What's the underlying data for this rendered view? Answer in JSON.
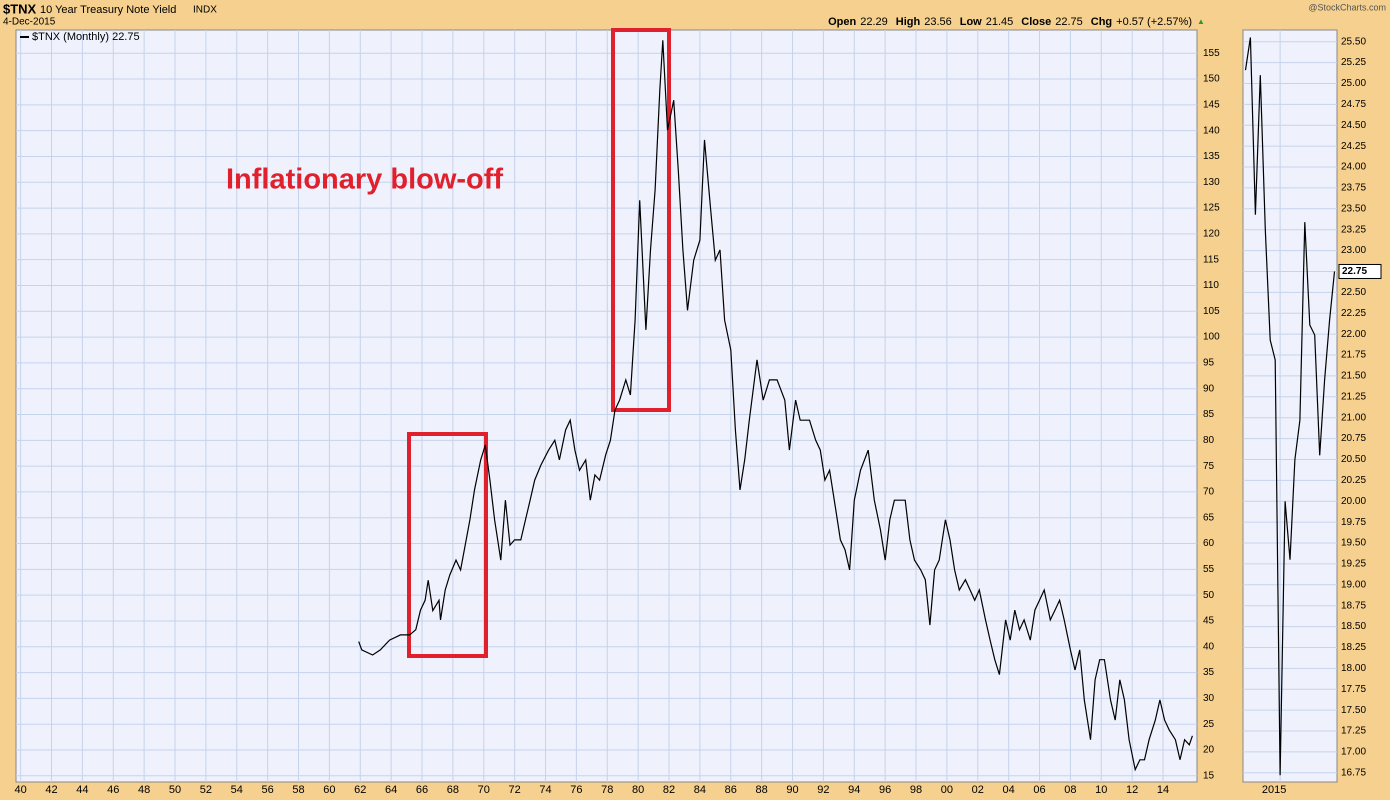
{
  "header": {
    "symbol": "$TNX",
    "name": "10 Year Treasury Note Yield",
    "exchange": "INDX",
    "date": "4-Dec-2015",
    "brand": "@StockCharts.com",
    "quote": [
      {
        "label": "Open",
        "value": "22.29"
      },
      {
        "label": "High",
        "value": "23.56"
      },
      {
        "label": "Low",
        "value": "21.45"
      },
      {
        "label": "Close",
        "value": "22.75"
      },
      {
        "label": "Chg",
        "value": "+0.57 (+2.57%)"
      }
    ]
  },
  "chart_data": [
    {
      "type": "line",
      "annotation": "Inflationary blow-off",
      "x": [
        1961.9,
        1962.1,
        1962.8,
        1963.3,
        1963.9,
        1964.6,
        1965.2,
        1965.6,
        1965.9,
        1966.2,
        1966.4,
        1966.7,
        1967.1,
        1967.2,
        1967.5,
        1967.8,
        1968.2,
        1968.5,
        1968.8,
        1969.1,
        1969.4,
        1969.8,
        1970.1,
        1970.4,
        1970.7,
        1971.1,
        1971.4,
        1971.7,
        1972.0,
        1972.4,
        1972.7,
        1973.0,
        1973.3,
        1973.7,
        1974.2,
        1974.6,
        1974.9,
        1975.3,
        1975.6,
        1975.9,
        1976.2,
        1976.6,
        1976.9,
        1977.2,
        1977.5,
        1977.9,
        1978.2,
        1978.5,
        1978.8,
        1979.2,
        1979.5,
        1979.8,
        1980.1,
        1980.5,
        1980.8,
        1981.1,
        1981.4,
        1981.6,
        1981.9,
        1982.3,
        1982.6,
        1982.9,
        1983.2,
        1983.6,
        1984.0,
        1984.3,
        1984.7,
        1985.0,
        1985.3,
        1985.6,
        1986.0,
        1986.3,
        1986.6,
        1986.9,
        1987.2,
        1987.7,
        1988.1,
        1988.5,
        1989.0,
        1989.5,
        1989.8,
        1990.2,
        1990.5,
        1991.1,
        1991.5,
        1991.8,
        1992.1,
        1992.4,
        1992.8,
        1993.1,
        1993.4,
        1993.7,
        1994.0,
        1994.4,
        1994.9,
        1995.3,
        1995.7,
        1996.0,
        1996.3,
        1996.6,
        1997.0,
        1997.3,
        1997.6,
        1997.9,
        1998.3,
        1998.6,
        1998.9,
        1999.2,
        1999.5,
        1999.9,
        2000.2,
        2000.5,
        2000.8,
        2001.2,
        2001.5,
        2001.8,
        2002.1,
        2002.5,
        2002.8,
        2003.1,
        2003.4,
        2003.8,
        2004.1,
        2004.4,
        2004.7,
        2005.0,
        2005.4,
        2005.7,
        2006.0,
        2006.3,
        2006.7,
        2007.0,
        2007.3,
        2007.6,
        2008.0,
        2008.3,
        2008.6,
        2008.9,
        2009.3,
        2009.6,
        2009.9,
        2010.2,
        2010.6,
        2010.9,
        2011.2,
        2011.5,
        2011.8,
        2012.2,
        2012.5,
        2012.8,
        2013.1,
        2013.5,
        2013.8,
        2014.1,
        2014.4,
        2014.8,
        2015.1,
        2015.4,
        2015.7,
        2015.9
      ],
      "series": [
        {
          "name": "$TNX (Monthly) 22.75",
          "color": "#000000",
          "values": [
            41.0,
            39.4,
            38.4,
            39.4,
            41.3,
            42.3,
            42.3,
            43.3,
            47.1,
            49.0,
            52.9,
            47.0,
            49.0,
            45.2,
            51.0,
            53.9,
            56.8,
            54.9,
            59.7,
            64.6,
            70.4,
            76.2,
            79.1,
            72.3,
            64.6,
            56.8,
            68.4,
            59.7,
            60.7,
            60.7,
            64.6,
            68.4,
            72.3,
            75.2,
            78.1,
            80.0,
            76.2,
            82.0,
            83.9,
            78.1,
            74.2,
            76.2,
            68.4,
            73.3,
            72.3,
            77.2,
            80.0,
            85.9,
            87.8,
            91.7,
            88.8,
            103.3,
            126.5,
            101.4,
            116.9,
            128.5,
            147.8,
            157.5,
            140.1,
            145.9,
            132.3,
            116.9,
            105.2,
            114.9,
            118.8,
            138.2,
            124.6,
            114.9,
            116.9,
            103.3,
            97.5,
            82.0,
            70.4,
            76.2,
            83.9,
            95.6,
            87.8,
            91.7,
            91.7,
            87.8,
            78.1,
            87.8,
            83.9,
            83.9,
            80.0,
            78.1,
            72.3,
            74.2,
            66.5,
            60.7,
            58.8,
            54.9,
            68.4,
            74.2,
            78.1,
            68.4,
            62.6,
            56.8,
            64.6,
            68.4,
            68.4,
            68.4,
            60.7,
            56.8,
            54.9,
            53.0,
            44.2,
            54.9,
            56.8,
            64.6,
            60.7,
            54.9,
            51.0,
            53.0,
            51.0,
            49.0,
            51.0,
            45.2,
            41.3,
            37.5,
            34.6,
            45.2,
            41.3,
            47.1,
            43.3,
            45.2,
            41.3,
            47.1,
            49.0,
            51.0,
            45.2,
            47.1,
            49.0,
            45.2,
            39.4,
            35.5,
            39.4,
            29.7,
            22.0,
            33.6,
            37.5,
            37.5,
            29.7,
            25.8,
            33.6,
            29.7,
            22.0,
            16.2,
            18.1,
            18.1,
            22.0,
            25.8,
            29.7,
            25.8,
            23.9,
            22.0,
            18.1,
            22.0,
            21.0,
            22.75
          ]
        }
      ],
      "xlim": [
        1939.7,
        2016.2
      ],
      "ylim": [
        13.8,
        159.5
      ],
      "xticks": [
        {
          "value": 1940,
          "label": "40"
        },
        {
          "value": 1942,
          "label": "42"
        },
        {
          "value": 1944,
          "label": "44"
        },
        {
          "value": 1946,
          "label": "46"
        },
        {
          "value": 1948,
          "label": "48"
        },
        {
          "value": 1950,
          "label": "50"
        },
        {
          "value": 1952,
          "label": "52"
        },
        {
          "value": 1954,
          "label": "54"
        },
        {
          "value": 1956,
          "label": "56"
        },
        {
          "value": 1958,
          "label": "58"
        },
        {
          "value": 1960,
          "label": "60"
        },
        {
          "value": 1962,
          "label": "62"
        },
        {
          "value": 1964,
          "label": "64"
        },
        {
          "value": 1966,
          "label": "66"
        },
        {
          "value": 1968,
          "label": "68"
        },
        {
          "value": 1970,
          "label": "70"
        },
        {
          "value": 1972,
          "label": "72"
        },
        {
          "value": 1974,
          "label": "74"
        },
        {
          "value": 1976,
          "label": "76"
        },
        {
          "value": 1978,
          "label": "78"
        },
        {
          "value": 1980,
          "label": "80"
        },
        {
          "value": 1982,
          "label": "82"
        },
        {
          "value": 1984,
          "label": "84"
        },
        {
          "value": 1986,
          "label": "86"
        },
        {
          "value": 1988,
          "label": "88"
        },
        {
          "value": 1990,
          "label": "90"
        },
        {
          "value": 1992,
          "label": "92"
        },
        {
          "value": 1994,
          "label": "94"
        },
        {
          "value": 1996,
          "label": "96"
        },
        {
          "value": 1998,
          "label": "98"
        },
        {
          "value": 2000,
          "label": "00"
        },
        {
          "value": 2002,
          "label": "02"
        },
        {
          "value": 2004,
          "label": "04"
        },
        {
          "value": 2006,
          "label": "06"
        },
        {
          "value": 2008,
          "label": "08"
        },
        {
          "value": 2010,
          "label": "10"
        },
        {
          "value": 2012,
          "label": "12"
        },
        {
          "value": 2014,
          "label": "14"
        }
      ],
      "yticks": [
        15,
        20,
        25,
        30,
        35,
        40,
        45,
        50,
        55,
        60,
        65,
        70,
        75,
        80,
        85,
        90,
        95,
        100,
        105,
        110,
        115,
        120,
        125,
        130,
        135,
        140,
        145,
        150,
        155
      ],
      "grid": true
    },
    {
      "type": "line",
      "categories": [
        null,
        null,
        null,
        null,
        null,
        null,
        null,
        "2015",
        null,
        null,
        null,
        null,
        null,
        null,
        null,
        null,
        null,
        null,
        null
      ],
      "series": [
        {
          "color": "#000000",
          "values": [
            25.16,
            25.55,
            23.43,
            25.1,
            23.25,
            21.93,
            21.69,
            16.72,
            20.0,
            19.3,
            20.5,
            20.97,
            23.34,
            22.11,
            21.99,
            20.55,
            21.45,
            22.17,
            22.75
          ]
        }
      ],
      "ylim": [
        16.64,
        25.64
      ],
      "yticks": [
        16.75,
        {
          "value": 17,
          "label": "17.00"
        },
        17.25,
        {
          "value": 17.5,
          "label": "17.50"
        },
        17.75,
        {
          "value": 18,
          "label": "18.00"
        },
        18.25,
        {
          "value": 18.5,
          "label": "18.50"
        },
        18.75,
        {
          "value": 19,
          "label": "19.00"
        },
        19.25,
        {
          "value": 19.5,
          "label": "19.50"
        },
        19.75,
        {
          "value": 20,
          "label": "20.00"
        },
        20.25,
        {
          "value": 20.5,
          "label": "20.50"
        },
        20.75,
        {
          "value": 21,
          "label": "21.00"
        },
        21.25,
        {
          "value": 21.5,
          "label": "21.50"
        },
        21.75,
        {
          "value": 22,
          "label": "22.00"
        },
        22.25,
        {
          "value": 22.5,
          "label": "22.50"
        },
        22.75,
        {
          "value": 23,
          "label": "23.00"
        },
        23.25,
        {
          "value": 23.5,
          "label": "23.50"
        },
        23.75,
        {
          "value": 24,
          "label": "24.00"
        },
        24.25,
        {
          "value": 24.5,
          "label": "24.50"
        },
        24.75,
        {
          "value": 25,
          "label": "25.00"
        },
        25.25,
        {
          "value": 25.5,
          "label": "25.50"
        }
      ],
      "grid": true
    }
  ]
}
